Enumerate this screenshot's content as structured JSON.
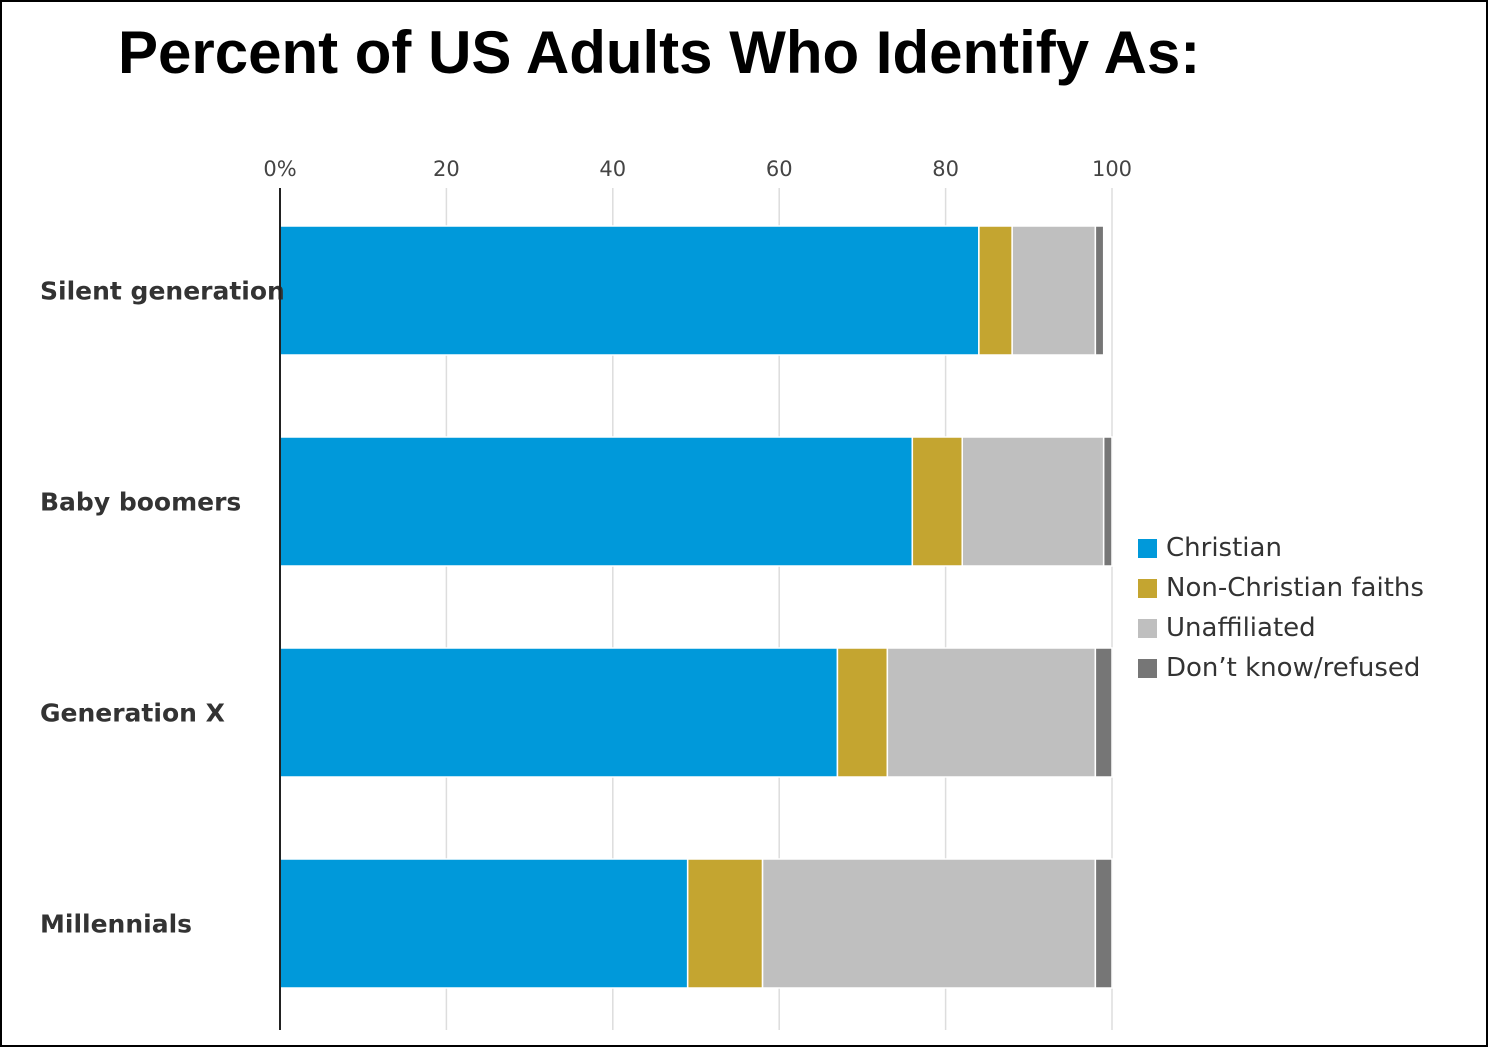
{
  "title": "Percent of US Adults Who Identify As:",
  "chart_data": {
    "type": "bar",
    "orientation": "horizontal",
    "stacked": true,
    "categories": [
      "Silent generation",
      "Baby boomers",
      "Generation X",
      "Millennials"
    ],
    "series": [
      {
        "name": "Christian",
        "color": "#0099da",
        "values": [
          84,
          76,
          67,
          49
        ]
      },
      {
        "name": "Non-Christian faiths",
        "color": "#c4a530",
        "values": [
          4,
          6,
          6,
          9
        ]
      },
      {
        "name": "Unaffiliated",
        "color": "#bfbfbf",
        "values": [
          10,
          17,
          25,
          40
        ]
      },
      {
        "name": "Don’t know/refused",
        "color": "#767676",
        "values": [
          1,
          1,
          2,
          2
        ]
      }
    ],
    "xlim": [
      0,
      100
    ],
    "x_ticks": [
      "0%",
      "20",
      "40",
      "60",
      "80",
      "100"
    ],
    "x_tick_values": [
      0,
      20,
      40,
      60,
      80,
      100
    ],
    "gridlines": true,
    "legend_position": "right"
  }
}
